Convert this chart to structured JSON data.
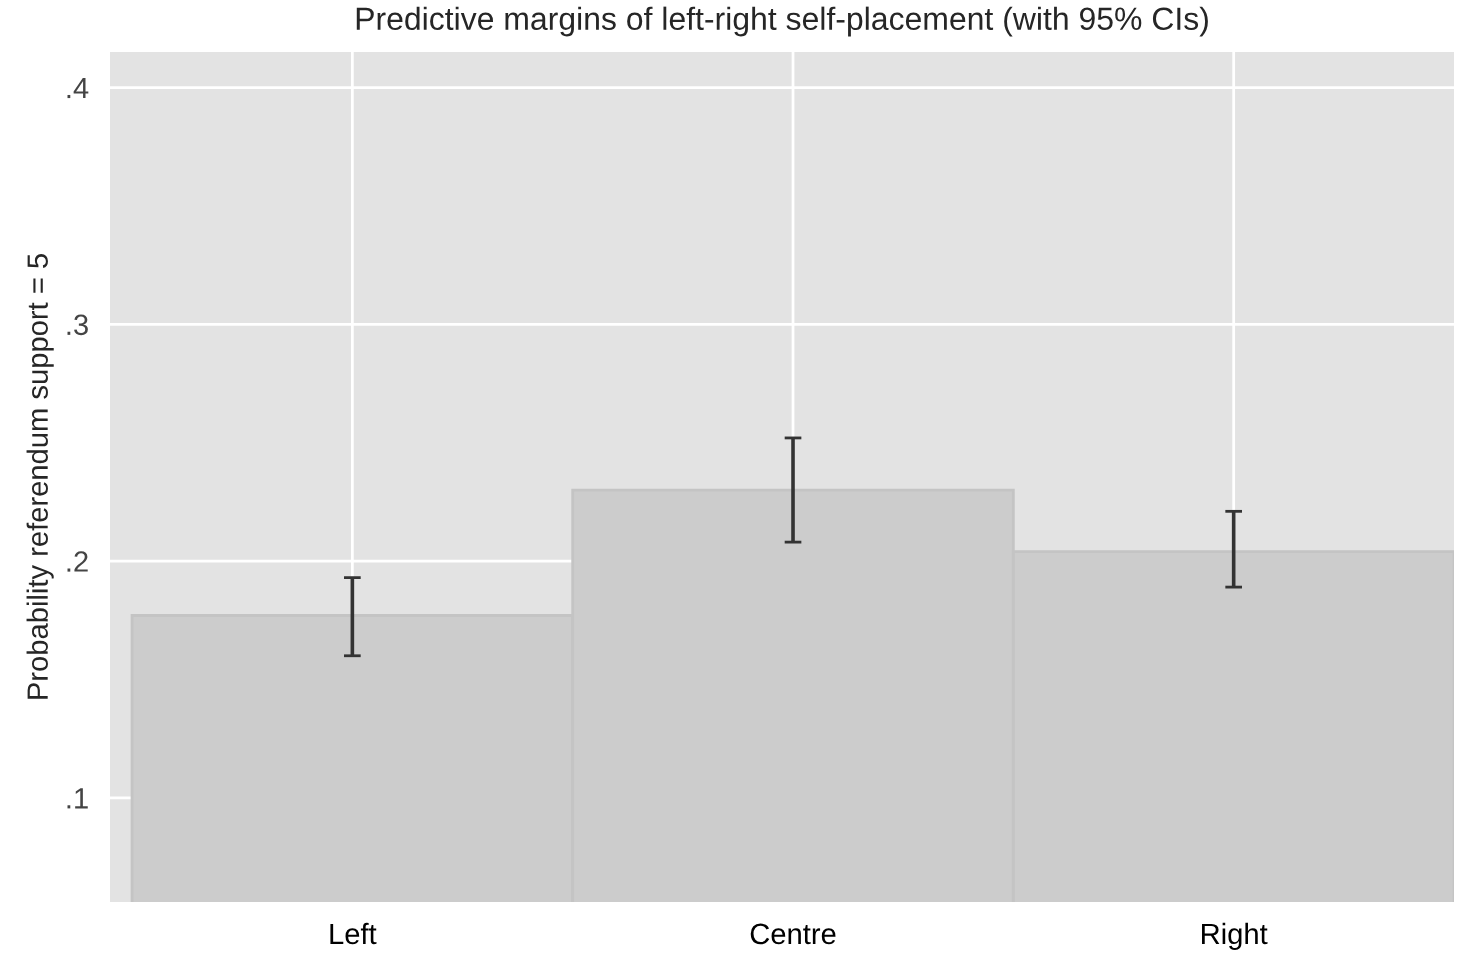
{
  "chart_data": {
    "type": "bar",
    "title": "Predictive margins of left-right self-placement (with 95% CIs)",
    "ylabel": "Probability referendum support = 5",
    "categories": [
      "Left",
      "Centre",
      "Right"
    ],
    "values": [
      0.177,
      0.23,
      0.204
    ],
    "color": "#cccccc",
    "errors": [
      [
        0.16,
        0.193
      ],
      [
        0.208,
        0.252
      ],
      [
        0.189,
        0.221
      ]
    ],
    "ylim": [
      0.056,
      0.415
    ],
    "yticks": [
      {
        "value": 0.1,
        "label": ".1"
      },
      {
        "value": 0.2,
        "label": ".2"
      },
      {
        "value": 0.3,
        "label": ".3"
      },
      {
        "value": 0.4,
        "label": ".4"
      }
    ],
    "grid": true
  }
}
